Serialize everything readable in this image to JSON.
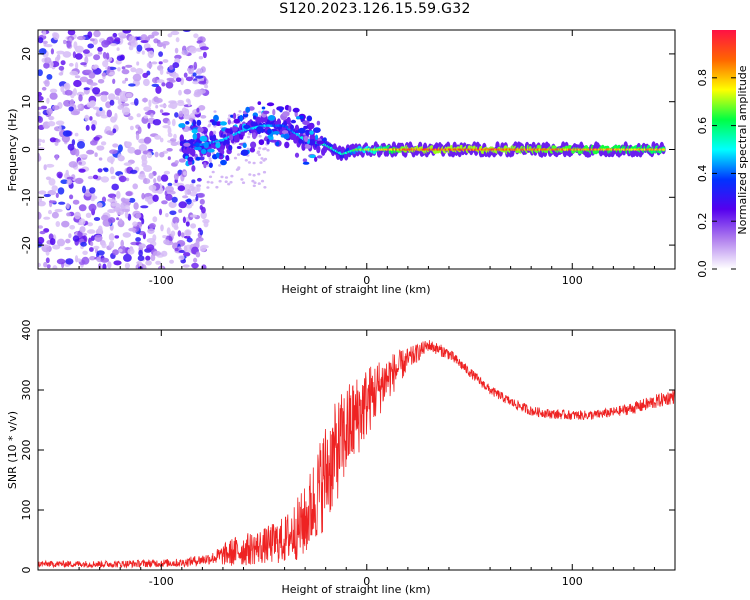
{
  "title": "S120.2023.126.15.59.G32",
  "colors": {
    "snr_line": "#ee2222",
    "axis": "#000000"
  },
  "chart_data": [
    {
      "type": "heatmap",
      "name": "spectrogram",
      "xlabel": "Height of straight line (km)",
      "ylabel": "Frequency (Hz)",
      "xlim": [
        -160,
        150
      ],
      "ylim": [
        -25,
        25
      ],
      "xticks": [
        -100,
        0,
        100
      ],
      "yticks": [
        -20,
        -10,
        0,
        10,
        20
      ],
      "colorbar": {
        "label": "Normalized spectral amplitude",
        "range": [
          0,
          1
        ],
        "ticks": [
          0.0,
          0.2,
          0.4,
          0.6,
          0.8
        ],
        "colors": [
          "#ffffff",
          "#b07fee",
          "#5500ee",
          "#0033ff",
          "#00ffff",
          "#00ff44",
          "#ffff00",
          "#ff6600",
          "#ff1144"
        ]
      },
      "features": {
        "noise_region_x": [
          -160,
          -78
        ],
        "ridge": [
          {
            "x": -90,
            "f": 1,
            "amp": 0.3
          },
          {
            "x": -80,
            "f": 1,
            "amp": 0.45
          },
          {
            "x": -70,
            "f": 2,
            "amp": 0.5
          },
          {
            "x": -60,
            "f": 4,
            "amp": 0.5
          },
          {
            "x": -50,
            "f": 5,
            "amp": 0.5
          },
          {
            "x": -40,
            "f": 5,
            "amp": 0.4
          },
          {
            "x": -30,
            "f": 2,
            "amp": 0.55
          },
          {
            "x": -20,
            "f": 1,
            "amp": 0.6
          },
          {
            "x": -12,
            "f": -1,
            "amp": 0.55
          },
          {
            "x": -5,
            "f": 0,
            "amp": 0.7
          },
          {
            "x": 20,
            "f": 0,
            "amp": 0.95
          },
          {
            "x": 60,
            "f": 0,
            "amp": 0.95
          },
          {
            "x": 100,
            "f": 0,
            "amp": 0.9
          },
          {
            "x": 145,
            "f": 0,
            "amp": 0.85
          }
        ]
      }
    },
    {
      "type": "line",
      "name": "snr",
      "xlabel": "Height of straight line (km)",
      "ylabel": "SNR (10 * v/v)",
      "xlim": [
        -160,
        150
      ],
      "ylim": [
        0,
        400
      ],
      "xticks": [
        -100,
        0,
        100
      ],
      "yticks": [
        0,
        100,
        200,
        300,
        400
      ],
      "envelope": {
        "x": [
          -160,
          -120,
          -90,
          -75,
          -65,
          -50,
          -40,
          -30,
          -20,
          -10,
          0,
          10,
          20,
          30,
          40,
          50,
          60,
          70,
          80,
          90,
          100,
          110,
          120,
          130,
          140,
          150
        ],
        "mean": [
          10,
          10,
          12,
          20,
          30,
          40,
          50,
          80,
          160,
          230,
          280,
          320,
          350,
          375,
          360,
          330,
          300,
          280,
          265,
          260,
          258,
          258,
          263,
          270,
          280,
          290
        ],
        "amplitude": [
          5,
          6,
          7,
          10,
          25,
          30,
          40,
          60,
          90,
          80,
          60,
          40,
          20,
          10,
          10,
          8,
          8,
          8,
          8,
          8,
          8,
          8,
          8,
          10,
          12,
          12
        ]
      }
    }
  ]
}
